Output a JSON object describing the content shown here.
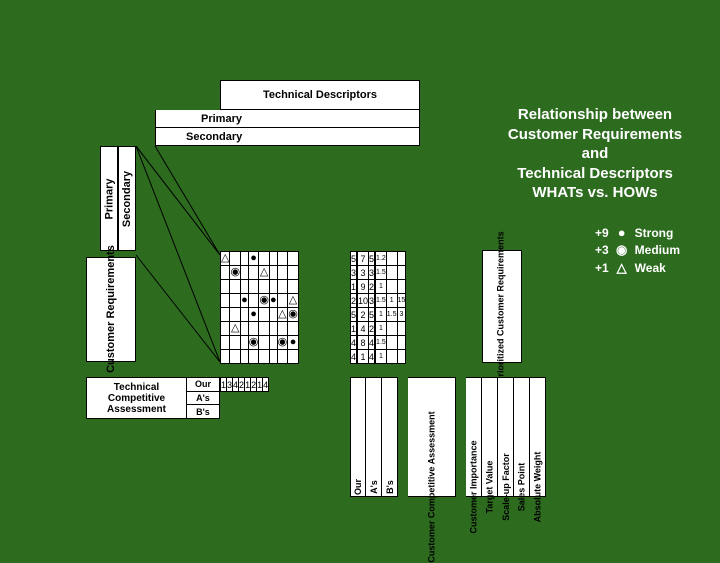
{
  "background_color": "#2d6b1f",
  "cell_bg": "#ffffff",
  "border_color": "#000000",
  "title_lines": [
    "Relationship between",
    "Customer Requirements",
    "and",
    "Technical Descriptors",
    "WHATs vs. HOWs"
  ],
  "headers": {
    "tech_desc": "Technical\nDescriptors",
    "primary": "Primary",
    "secondary": "Secondary",
    "cust_req": "Customer\nRequirements",
    "prioritized": "Prioritized\nCustomer\nRequirements"
  },
  "legend": [
    {
      "score": "+9",
      "sym": "●",
      "label": "Strong"
    },
    {
      "score": "+3",
      "sym": "◉",
      "label": "Medium"
    },
    {
      "score": "+1",
      "sym": "△",
      "label": "Weak"
    }
  ],
  "symbols": {
    "strong": "●",
    "medium": "◉",
    "weak": "△"
  },
  "grid": {
    "cols": 8,
    "rows": [
      [
        "weak",
        "",
        "",
        "strong",
        "",
        "",
        "",
        ""
      ],
      [
        "",
        "medium",
        "",
        "",
        "weak",
        "",
        "",
        ""
      ],
      [
        "",
        "",
        "",
        "",
        "",
        "",
        "",
        ""
      ],
      [
        "",
        "",
        "strong",
        "",
        "medium",
        "strong",
        "",
        "weak"
      ],
      [
        "",
        "",
        "",
        "strong",
        "",
        "",
        "weak",
        "medium"
      ],
      [
        "",
        "weak",
        "",
        "",
        "",
        "",
        "",
        ""
      ],
      [
        "",
        "",
        "",
        "medium",
        "",
        "",
        "medium",
        "strong"
      ],
      [
        "",
        "",
        "",
        "",
        "",
        "",
        "",
        ""
      ]
    ]
  },
  "right_block": {
    "col_sets": [
      {
        "label": "cust_importance",
        "vals": [
          "5",
          "3",
          "1",
          "2",
          "5",
          "1",
          "4",
          "4"
        ]
      },
      {
        "gap": true
      },
      {
        "label": "comp_1",
        "vals": [
          "7",
          "3",
          "9",
          "10",
          "2",
          "4",
          "8",
          "1"
        ]
      },
      {
        "label": "comp_2",
        "vals": [
          "5",
          "3",
          "2",
          "3",
          "5",
          "2",
          "4",
          "4"
        ]
      },
      {
        "gap": true
      },
      {
        "label": "target",
        "vals": [
          "1.2",
          "1.5",
          "1",
          "1.5",
          "1",
          "1",
          "1.5",
          "1"
        ],
        "small": true
      },
      {
        "label": "scaleup",
        "vals": [
          "",
          "",
          "",
          "1",
          "1.5",
          "",
          "",
          ""
        ],
        "small": true
      },
      {
        "label": "sales",
        "vals": [
          "",
          "",
          "",
          "15",
          "3",
          "",
          "",
          ""
        ],
        "small": true
      }
    ]
  },
  "bottom": {
    "tech_comp": "Technical\nCompetitive\nAssessment",
    "rows_lbl": [
      "Our",
      "A's",
      "B's"
    ],
    "nums": [
      "1",
      "3",
      "4",
      "2",
      "1",
      "2",
      "1",
      "4"
    ],
    "vlabels": [
      {
        "text": "Our",
        "w": 16
      },
      {
        "text": "A's",
        "w": 16
      },
      {
        "text": "B's",
        "w": 16
      },
      {
        "gap": true
      },
      {
        "text": "Customer Competitive Assessment",
        "w": 48,
        "merged": true
      },
      {
        "gap": true
      },
      {
        "text": "Customer Importance",
        "w": 16
      },
      {
        "text": "Target Value",
        "w": 16
      },
      {
        "text": "Scale-up Factor",
        "w": 16
      },
      {
        "text": "Sales Point",
        "w": 16
      },
      {
        "text": "Absolute Weight",
        "w": 16
      }
    ]
  }
}
